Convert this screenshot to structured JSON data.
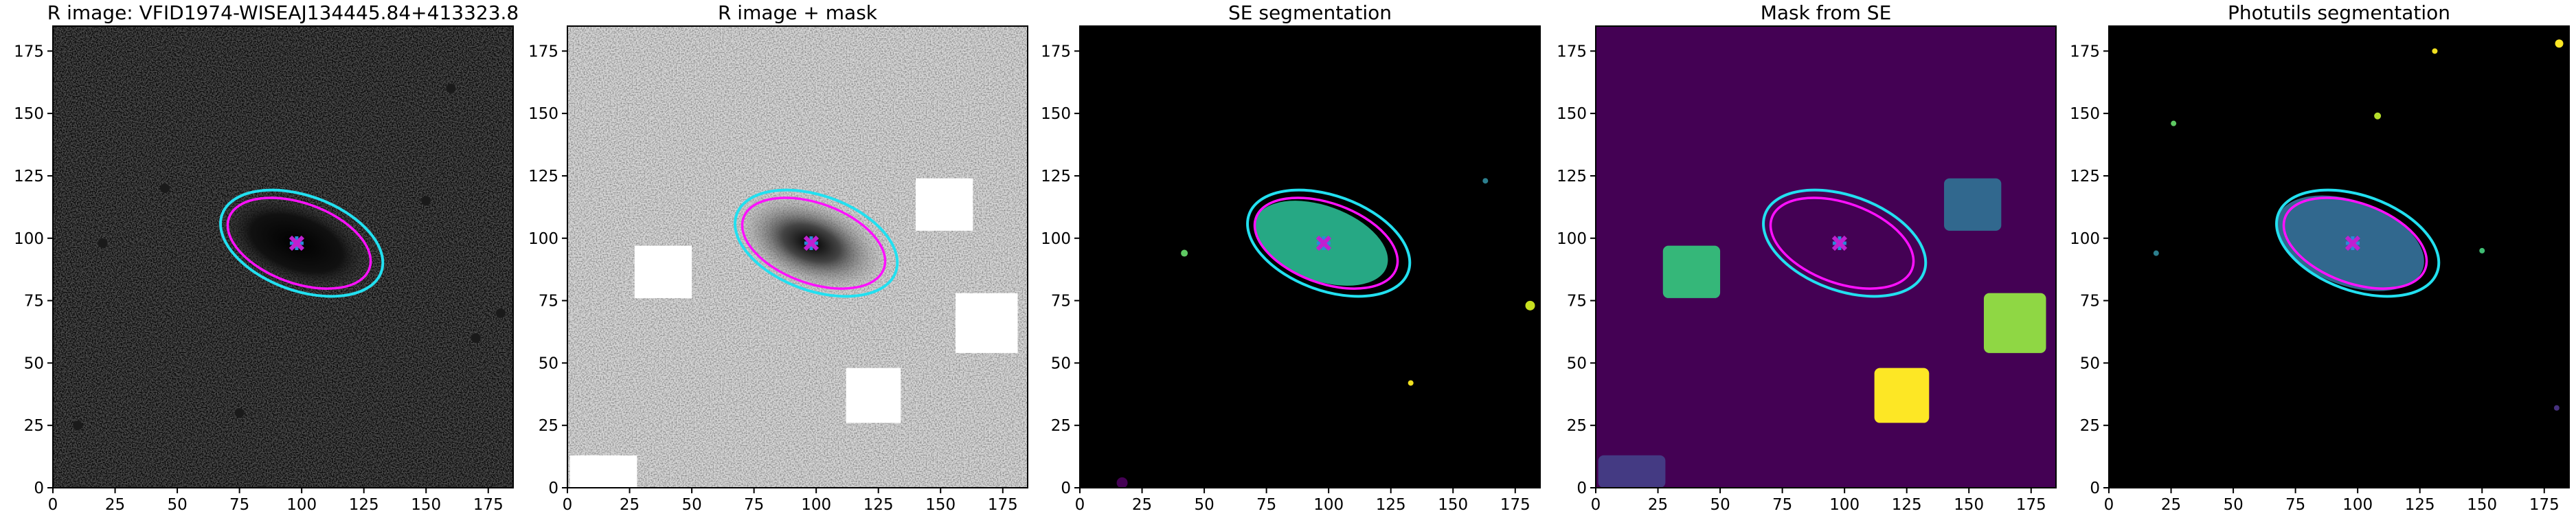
{
  "chart_data": [
    {
      "type": "image",
      "title": "R image: VFID1974-WISEAJ134445.84+413323.8",
      "xlim": [
        0,
        185
      ],
      "ylim": [
        0,
        185
      ],
      "xticks": [
        0,
        25,
        50,
        75,
        100,
        125,
        150,
        175
      ],
      "yticks": [
        0,
        25,
        50,
        75,
        100,
        125,
        150,
        175
      ]
    },
    {
      "type": "image",
      "title": "R image + mask",
      "xlim": [
        0,
        185
      ],
      "ylim": [
        0,
        185
      ],
      "xticks": [
        0,
        25,
        50,
        75,
        100,
        125,
        150,
        175
      ],
      "yticks": [
        0,
        25,
        50,
        75,
        100,
        125,
        150,
        175
      ]
    },
    {
      "type": "image",
      "title": "SE segmentation",
      "xlim": [
        0,
        185
      ],
      "ylim": [
        0,
        185
      ],
      "xticks": [
        0,
        25,
        50,
        75,
        100,
        125,
        150,
        175
      ],
      "yticks": [
        0,
        25,
        50,
        75,
        100,
        125,
        150,
        175
      ]
    },
    {
      "type": "image",
      "title": "Mask from SE",
      "xlim": [
        0,
        185
      ],
      "ylim": [
        0,
        185
      ],
      "xticks": [
        0,
        25,
        50,
        75,
        100,
        125,
        150,
        175
      ],
      "yticks": [
        0,
        25,
        50,
        75,
        100,
        125,
        150,
        175
      ]
    },
    {
      "type": "image",
      "title": "Photutils segmentation",
      "xlim": [
        0,
        185
      ],
      "ylim": [
        0,
        185
      ],
      "xticks": [
        0,
        25,
        50,
        75,
        100,
        125,
        150,
        175
      ],
      "yticks": [
        0,
        25,
        50,
        75,
        100,
        125,
        150,
        175
      ]
    }
  ]
}
